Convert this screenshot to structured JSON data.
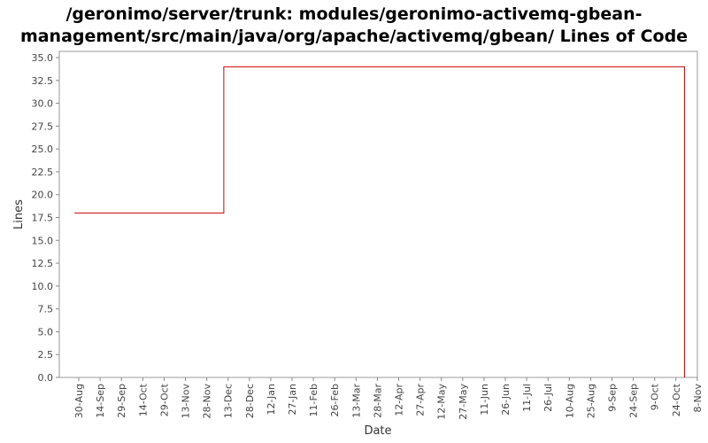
{
  "chart_data": {
    "type": "line",
    "title": "/geronimo/server/trunk: modules/geronimo-activemq-gbean-management/src/main/java/org/apache/activemq/gbean/ Lines of Code",
    "xlabel": "Date",
    "ylabel": "Lines",
    "ylim": [
      0,
      35
    ],
    "yticks": [
      "0.0",
      "2.5",
      "5.0",
      "7.5",
      "10.0",
      "12.5",
      "15.0",
      "17.5",
      "20.0",
      "22.5",
      "25.0",
      "27.5",
      "30.0",
      "32.5",
      "35.0"
    ],
    "xticks": [
      "30-Aug",
      "14-Sep",
      "29-Sep",
      "14-Oct",
      "29-Oct",
      "13-Nov",
      "28-Nov",
      "13-Dec",
      "28-Dec",
      "12-Jan",
      "27-Jan",
      "11-Feb",
      "26-Feb",
      "13-Mar",
      "28-Mar",
      "12-Apr",
      "27-Apr",
      "12-May",
      "27-May",
      "11-Jun",
      "26-Jun",
      "11-Jul",
      "26-Jul",
      "10-Aug",
      "25-Aug",
      "9-Sep",
      "24-Sep",
      "9-Oct",
      "24-Oct",
      "8-Nov"
    ],
    "grid": false,
    "line_color": "#cc0000",
    "series": [
      {
        "step": "post",
        "points": [
          {
            "x": "2005-08-27",
            "y": 18
          },
          {
            "x": "2005-12-10",
            "y": 34
          },
          {
            "x": "2006-10-30",
            "y": 34
          },
          {
            "x": "2006-10-30",
            "y": 0
          }
        ]
      }
    ]
  }
}
